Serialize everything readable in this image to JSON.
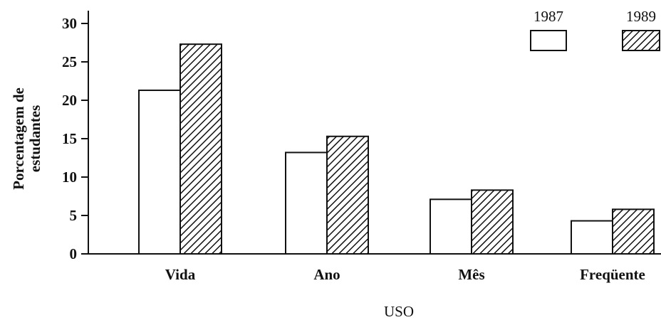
{
  "chart_data": {
    "type": "bar",
    "categories": [
      "Vida",
      "Ano",
      "Mês",
      "Freqüente"
    ],
    "series": [
      {
        "name": "1987",
        "fill": "white",
        "values": [
          21.3,
          13.2,
          7.1,
          4.3
        ]
      },
      {
        "name": "1989",
        "fill": "hatched",
        "values": [
          27.3,
          15.3,
          8.3,
          5.8
        ]
      }
    ],
    "xlabel": "USO",
    "ylabel_lines": [
      "Porcentagem de",
      "estudantes"
    ],
    "ylim": [
      0,
      30
    ],
    "yticks": [
      0,
      5,
      10,
      15,
      20,
      25,
      30
    ],
    "grid": false,
    "legend_position": "top-right",
    "colors": {
      "stroke": "#111111",
      "background": "#ffffff"
    }
  }
}
